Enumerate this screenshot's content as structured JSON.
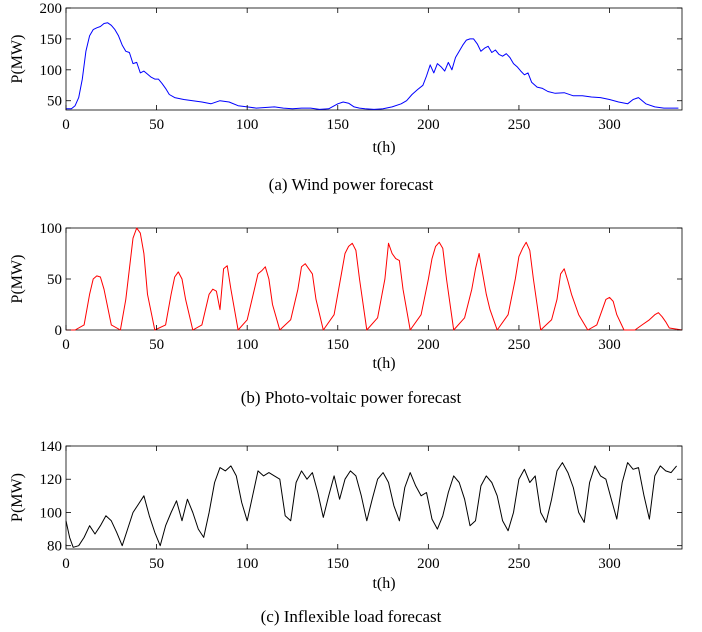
{
  "chart_data": [
    {
      "type": "line",
      "caption": "(a) Wind power forecast",
      "xlabel": "t(h)",
      "ylabel": "P(MW)",
      "xlim": [
        0,
        340
      ],
      "ylim": [
        35,
        200
      ],
      "xticks": [
        0,
        50,
        100,
        150,
        200,
        250,
        300
      ],
      "yticks": [
        50,
        100,
        150,
        200
      ],
      "grid": false,
      "color": "#0000ff",
      "x": [
        0,
        3,
        5,
        7,
        9,
        11,
        13,
        15,
        17,
        19,
        21,
        23,
        25,
        27,
        29,
        31,
        33,
        35,
        37,
        39,
        41,
        43,
        45,
        47,
        49,
        51,
        53,
        55,
        57,
        60,
        65,
        70,
        75,
        80,
        85,
        90,
        95,
        100,
        105,
        110,
        115,
        120,
        125,
        130,
        135,
        140,
        145,
        150,
        153,
        156,
        159,
        162,
        165,
        170,
        175,
        180,
        185,
        188,
        191,
        194,
        197,
        199,
        201,
        203,
        205,
        207,
        209,
        211,
        213,
        215,
        217,
        219,
        221,
        223,
        225,
        227,
        229,
        231,
        233,
        235,
        237,
        239,
        241,
        243,
        245,
        247,
        249,
        251,
        253,
        255,
        257,
        260,
        263,
        266,
        270,
        275,
        280,
        285,
        290,
        295,
        300,
        305,
        310,
        313,
        316,
        320,
        325,
        330,
        335,
        338
      ],
      "y": [
        37,
        37,
        42,
        55,
        85,
        130,
        155,
        165,
        168,
        170,
        175,
        176,
        172,
        165,
        155,
        140,
        130,
        128,
        110,
        112,
        95,
        98,
        93,
        88,
        85,
        85,
        78,
        70,
        60,
        55,
        52,
        50,
        48,
        45,
        50,
        48,
        42,
        40,
        38,
        39,
        40,
        38,
        37,
        38,
        38,
        36,
        37,
        45,
        48,
        46,
        40,
        38,
        37,
        36,
        37,
        40,
        45,
        50,
        60,
        68,
        75,
        90,
        108,
        95,
        110,
        105,
        98,
        112,
        100,
        120,
        130,
        140,
        148,
        150,
        150,
        142,
        130,
        135,
        138,
        128,
        132,
        125,
        122,
        126,
        120,
        110,
        105,
        98,
        92,
        95,
        80,
        72,
        70,
        65,
        62,
        63,
        58,
        58,
        56,
        55,
        52,
        48,
        45,
        52,
        55,
        45,
        40,
        38,
        38,
        38
      ]
    },
    {
      "type": "line",
      "caption": "(b) Photo-voltaic power forecast",
      "xlabel": "t(h)",
      "ylabel": "P(MW)",
      "xlim": [
        0,
        340
      ],
      "ylim": [
        0,
        100
      ],
      "xticks": [
        0,
        50,
        100,
        150,
        200,
        250,
        300
      ],
      "yticks": [
        0,
        50,
        100
      ],
      "grid": false,
      "color": "#ff0000",
      "x": [
        0,
        5,
        10,
        13,
        15,
        17,
        19,
        21,
        25,
        30,
        33,
        35,
        37,
        39,
        41,
        43,
        45,
        49,
        55,
        58,
        60,
        62,
        64,
        66,
        70,
        75,
        79,
        81,
        83,
        85,
        87,
        89,
        91,
        95,
        100,
        104,
        106,
        108,
        110,
        112,
        114,
        118,
        124,
        128,
        130,
        132,
        134,
        136,
        138,
        142,
        148,
        152,
        154,
        156,
        158,
        160,
        162,
        166,
        172,
        176,
        178,
        180,
        182,
        184,
        186,
        190,
        196,
        200,
        202,
        204,
        206,
        208,
        210,
        214,
        220,
        224,
        226,
        228,
        230,
        232,
        234,
        238,
        244,
        248,
        250,
        252,
        254,
        256,
        258,
        262,
        268,
        271,
        273,
        275,
        277,
        279,
        281,
        283,
        288,
        293,
        296,
        298,
        300,
        302,
        304,
        308,
        314,
        318,
        322,
        325,
        327,
        329,
        331,
        333,
        340
      ],
      "y": [
        0,
        0,
        5,
        35,
        50,
        53,
        52,
        40,
        5,
        0,
        30,
        60,
        90,
        100,
        95,
        75,
        35,
        0,
        5,
        35,
        52,
        57,
        50,
        30,
        0,
        5,
        35,
        40,
        38,
        20,
        60,
        63,
        40,
        0,
        10,
        40,
        55,
        58,
        62,
        50,
        25,
        0,
        10,
        40,
        62,
        65,
        60,
        55,
        30,
        0,
        15,
        55,
        75,
        82,
        85,
        78,
        50,
        0,
        12,
        50,
        85,
        75,
        70,
        68,
        40,
        0,
        15,
        50,
        70,
        82,
        86,
        80,
        50,
        0,
        12,
        40,
        60,
        75,
        55,
        35,
        20,
        0,
        15,
        50,
        72,
        80,
        86,
        78,
        50,
        0,
        10,
        30,
        55,
        60,
        48,
        35,
        25,
        15,
        0,
        5,
        20,
        30,
        32,
        28,
        15,
        0,
        0,
        5,
        10,
        15,
        17,
        13,
        8,
        2,
        0
      ]
    },
    {
      "type": "line",
      "caption": "(c) Inflexible load forecast",
      "xlabel": "t(h)",
      "ylabel": "P(MW)",
      "xlim": [
        0,
        340
      ],
      "ylim": [
        78,
        140
      ],
      "xticks": [
        0,
        50,
        100,
        150,
        200,
        250,
        300
      ],
      "yticks": [
        80,
        100,
        120,
        140
      ],
      "grid": false,
      "color": "#000000",
      "x": [
        0,
        2,
        4,
        7,
        10,
        13,
        16,
        19,
        22,
        25,
        28,
        31,
        34,
        37,
        40,
        43,
        46,
        49,
        52,
        55,
        58,
        61,
        64,
        67,
        70,
        73,
        76,
        79,
        82,
        85,
        88,
        91,
        94,
        97,
        100,
        103,
        106,
        109,
        112,
        115,
        118,
        121,
        124,
        127,
        130,
        133,
        136,
        139,
        142,
        145,
        148,
        151,
        154,
        157,
        160,
        163,
        166,
        169,
        172,
        175,
        178,
        181,
        184,
        187,
        190,
        193,
        196,
        199,
        202,
        205,
        208,
        211,
        214,
        217,
        220,
        223,
        226,
        229,
        232,
        235,
        238,
        241,
        244,
        247,
        250,
        253,
        256,
        259,
        262,
        265,
        268,
        271,
        274,
        277,
        280,
        283,
        286,
        289,
        292,
        295,
        298,
        301,
        304,
        307,
        310,
        313,
        316,
        319,
        322,
        325,
        328,
        331,
        334,
        337
      ],
      "y": [
        95,
        85,
        79,
        80,
        85,
        92,
        87,
        92,
        98,
        95,
        88,
        80,
        90,
        100,
        105,
        110,
        98,
        88,
        80,
        92,
        100,
        107,
        95,
        108,
        100,
        90,
        85,
        100,
        118,
        127,
        125,
        128,
        122,
        106,
        95,
        110,
        125,
        122,
        124,
        122,
        120,
        98,
        95,
        118,
        125,
        120,
        124,
        112,
        97,
        110,
        122,
        108,
        120,
        125,
        122,
        110,
        95,
        108,
        120,
        124,
        118,
        104,
        95,
        115,
        124,
        116,
        110,
        112,
        96,
        90,
        98,
        112,
        122,
        118,
        108,
        92,
        95,
        116,
        122,
        118,
        110,
        95,
        89,
        100,
        120,
        126,
        118,
        122,
        100,
        94,
        108,
        125,
        130,
        124,
        115,
        100,
        94,
        118,
        128,
        122,
        120,
        108,
        96,
        118,
        130,
        126,
        127,
        110,
        96,
        122,
        128,
        125,
        124,
        128
      ]
    }
  ]
}
